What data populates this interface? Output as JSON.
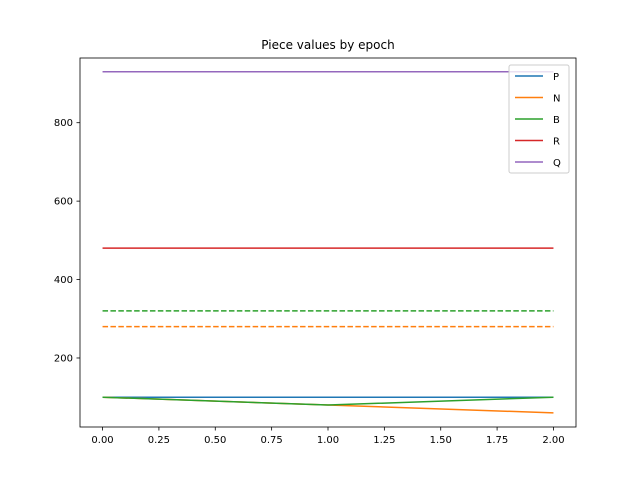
{
  "chart_data": {
    "type": "line",
    "title": "Piece values by epoch",
    "xlabel": "",
    "ylabel": "",
    "xlim": [
      -0.1,
      2.1
    ],
    "ylim": [
      24,
      965
    ],
    "xticks": [
      0.0,
      0.25,
      0.5,
      0.75,
      1.0,
      1.25,
      1.5,
      1.75,
      2.0
    ],
    "xtick_labels": [
      "0.00",
      "0.25",
      "0.50",
      "0.75",
      "1.00",
      "1.25",
      "1.50",
      "1.75",
      "2.00"
    ],
    "yticks": [
      200,
      400,
      600,
      800
    ],
    "ytick_labels": [
      "200",
      "400",
      "600",
      "800"
    ],
    "grid": false,
    "legend_placement": "upper right",
    "series": [
      {
        "name": "P",
        "color": "#1f77b4",
        "x": [
          0,
          1,
          2
        ],
        "values": [
          100,
          100,
          100
        ]
      },
      {
        "name": "N",
        "color": "#ff7f0e",
        "x": [
          0,
          1,
          2
        ],
        "values": [
          100,
          80,
          60
        ]
      },
      {
        "name": "B",
        "color": "#2ca02c",
        "x": [
          0,
          1,
          2
        ],
        "values": [
          100,
          80,
          100
        ]
      },
      {
        "name": "R",
        "color": "#d62728",
        "x": [
          0,
          1,
          2
        ],
        "values": [
          480,
          480,
          480
        ]
      },
      {
        "name": "Q",
        "color": "#9467bd",
        "x": [
          0,
          1,
          2
        ],
        "values": [
          930,
          930,
          930
        ]
      }
    ],
    "reference_lines": [
      {
        "color": "#ff7f0e",
        "style": "dashed",
        "x": [
          0,
          2
        ],
        "values": [
          280,
          280
        ]
      },
      {
        "color": "#2ca02c",
        "style": "dashed",
        "x": [
          0,
          2
        ],
        "values": [
          320,
          320
        ]
      }
    ]
  }
}
